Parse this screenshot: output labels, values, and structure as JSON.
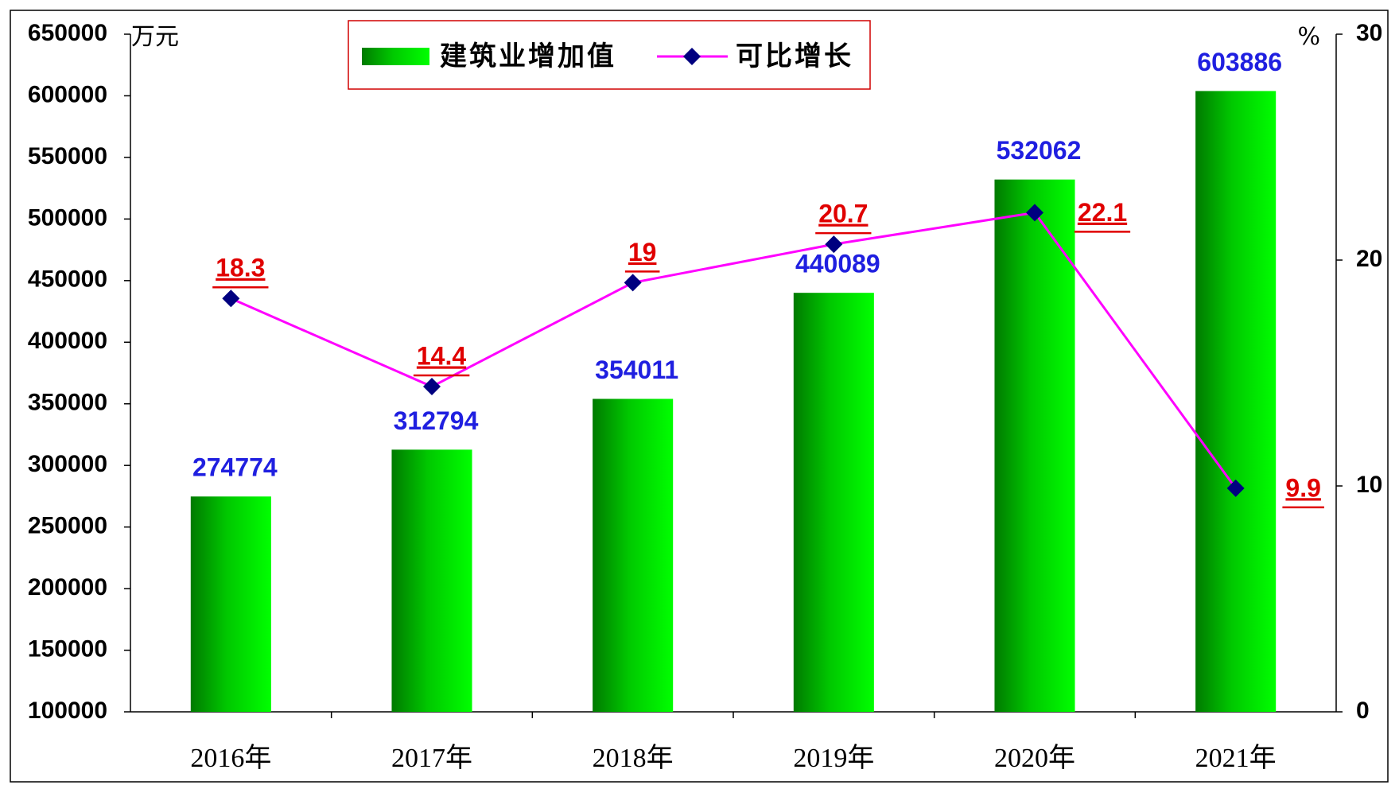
{
  "chart_data": {
    "type": "bar",
    "y_label": "万元",
    "y2_label": "%",
    "categories": [
      "2016年",
      "2017年",
      "2018年",
      "2019年",
      "2020年",
      "2021年"
    ],
    "series": [
      {
        "name": "建筑业增加值",
        "type": "bar",
        "color": "#00ee00",
        "values": [
          274774,
          312794,
          354011,
          440089,
          532062,
          603886
        ]
      },
      {
        "name": "可比增长",
        "type": "line",
        "axis": "y2",
        "color": "#ff00ff",
        "marker_color": "#000080",
        "values": [
          18.3,
          14.4,
          19,
          20.7,
          22.1,
          9.9
        ]
      }
    ],
    "ylim": [
      100000,
      650000
    ],
    "yticks": [
      100000,
      150000,
      200000,
      250000,
      300000,
      350000,
      400000,
      450000,
      500000,
      550000,
      600000,
      650000
    ],
    "y2lim": [
      0,
      30
    ],
    "y2ticks": [
      0,
      10,
      20,
      30
    ],
    "grid": false
  }
}
